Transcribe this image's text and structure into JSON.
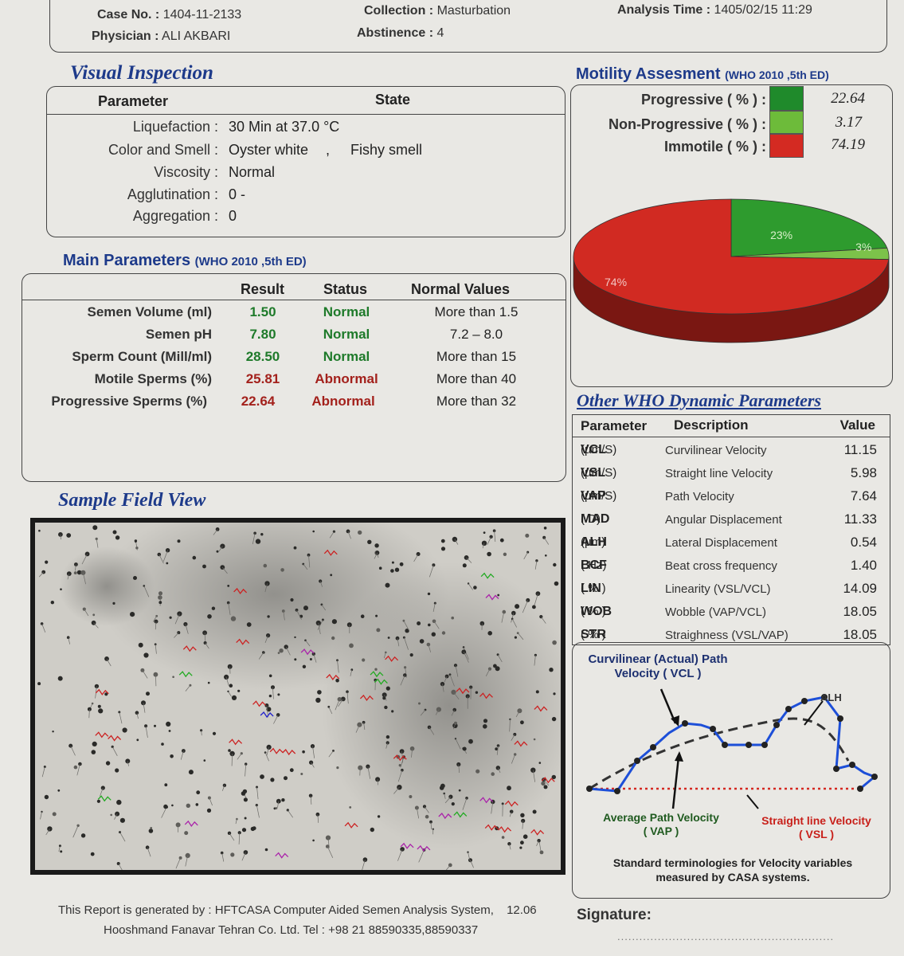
{
  "header": {
    "case_no_label": "Case No. :",
    "case_no": "1404-11-2133",
    "physician_label": "Physician :",
    "physician": "ALI AKBARI",
    "collection_label": "Collection :",
    "collection": "Masturbation",
    "abstinence_label": "Abstinence :",
    "abstinence": "4",
    "analysis_time_label": "Analysis Time :",
    "analysis_time": "1405/02/15  11:29"
  },
  "visual_inspection": {
    "title": "Visual Inspection",
    "col_parameter": "Parameter",
    "col_state": "State",
    "rows": [
      {
        "label": "Liquefaction :",
        "value": "30 Min at 37.0 °C",
        "extra": ""
      },
      {
        "label": "Color and Smell :",
        "value": "Oyster white",
        "extra": "Fishy smell"
      },
      {
        "label": "Viscosity :",
        "value": "Normal",
        "extra": ""
      },
      {
        "label": "Agglutination :",
        "value": "0  -",
        "extra": ""
      },
      {
        "label": "Aggregation :",
        "value": "0",
        "extra": ""
      }
    ],
    "separator": ","
  },
  "main_parameters": {
    "title": "Main Parameters",
    "subtitle": "(WHO 2010 ,5th ED)",
    "col_result": "Result",
    "col_status": "Status",
    "col_normal": "Normal Values",
    "rows": [
      {
        "name": "Semen Volume (ml)",
        "result": "1.50",
        "status": "Normal",
        "normal": "More than 1.5"
      },
      {
        "name": "Semen pH",
        "result": "7.80",
        "status": "Normal",
        "normal": "7.2 – 8.0"
      },
      {
        "name": "Sperm Count (Mill/ml)",
        "result": "28.50",
        "status": "Normal",
        "normal": "More than  15"
      },
      {
        "name": "Motile Sperms (%)",
        "result": "25.81",
        "status": "Abnormal",
        "normal": "More than 40"
      },
      {
        "name": "Progressive Sperms (%)",
        "result": "22.64",
        "status": "Abnormal",
        "normal": "More than 32"
      }
    ]
  },
  "motility": {
    "title": "Motility Assesment",
    "subtitle": "(WHO 2010 ,5th ED)",
    "rows": [
      {
        "label": "Progressive  ( % ) :",
        "value": "22.64",
        "color": "#1f8a2b"
      },
      {
        "label": "Non-Progressive ( % ) :",
        "value": "3.17",
        "color": "#6dbb3a"
      },
      {
        "label": "Immotile ( % ) :",
        "value": "74.19",
        "color": "#d42a22"
      }
    ]
  },
  "chart_data": {
    "type": "pie",
    "categories": [
      "Progressive",
      "Non-Progressive",
      "Immotile"
    ],
    "values": [
      22.64,
      3.17,
      74.19
    ],
    "slice_labels": [
      "23%",
      "3%",
      "74%"
    ],
    "colors": [
      "#2e9b2e",
      "#7cc24a",
      "#d12a22"
    ]
  },
  "other_who": {
    "title": "Other WHO Dynamic Parameters",
    "col_parameter": "Parameter",
    "col_description": "Description",
    "col_value": "Value",
    "rows": [
      {
        "param": "VCL",
        "unit": "(µm/S)",
        "desc": "Curvilinear Velocity",
        "value": "11.15"
      },
      {
        "param": "VSL",
        "unit": "(µm/S)",
        "desc": "Straight line Velocity",
        "value": "5.98"
      },
      {
        "param": "VAP",
        "unit": "(µm/S)",
        "desc": "Path Velocity",
        "value": "7.64"
      },
      {
        "param": "MAD",
        "unit": "( D)",
        "desc": "Angular Displacement",
        "value": "11.33"
      },
      {
        "param": "ALH",
        "unit": "(µm)",
        "desc": "Lateral Displacement",
        "value": "0.54"
      },
      {
        "param": "BCF",
        "unit": "( Hz)",
        "desc": "Beat cross frequency",
        "value": "1.40"
      },
      {
        "param": "LIN",
        "unit": "( % )",
        "desc": "Linearity (VSL/VCL)",
        "value": "14.09"
      },
      {
        "param": "WOB",
        "unit": "( % )",
        "desc": "Wobble  (VAP/VCL)",
        "value": "18.05"
      },
      {
        "param": "STR",
        "unit": "( % )",
        "desc": "Straighness (VSL/VAP)",
        "value": "18.05"
      }
    ]
  },
  "velocity_diagram": {
    "vcl_label_1": "Curvilinear (Actual) Path",
    "vcl_label_2": "Velocity ( VCL )",
    "alh_label": "ALH",
    "vap_label_1": "Average Path Velocity",
    "vap_label_2": "( VAP )",
    "vsl_label_1": "Straight line Velocity",
    "vsl_label_2": "( VSL )",
    "caption_1": "Standard terminologies for Velocity variables",
    "caption_2": "measured by CASA systems."
  },
  "sample_field": {
    "title": "Sample Field View"
  },
  "footer": {
    "line1": "This Report is generated by : HFTCASA Computer Aided Semen Analysis System,",
    "version": "12.06",
    "line2": "Hooshmand Fanavar Tehran Co. Ltd.   Tel : +98 21 88590335,88590337",
    "signature_label": "Signature:",
    "signature_line": "..........................................................."
  }
}
